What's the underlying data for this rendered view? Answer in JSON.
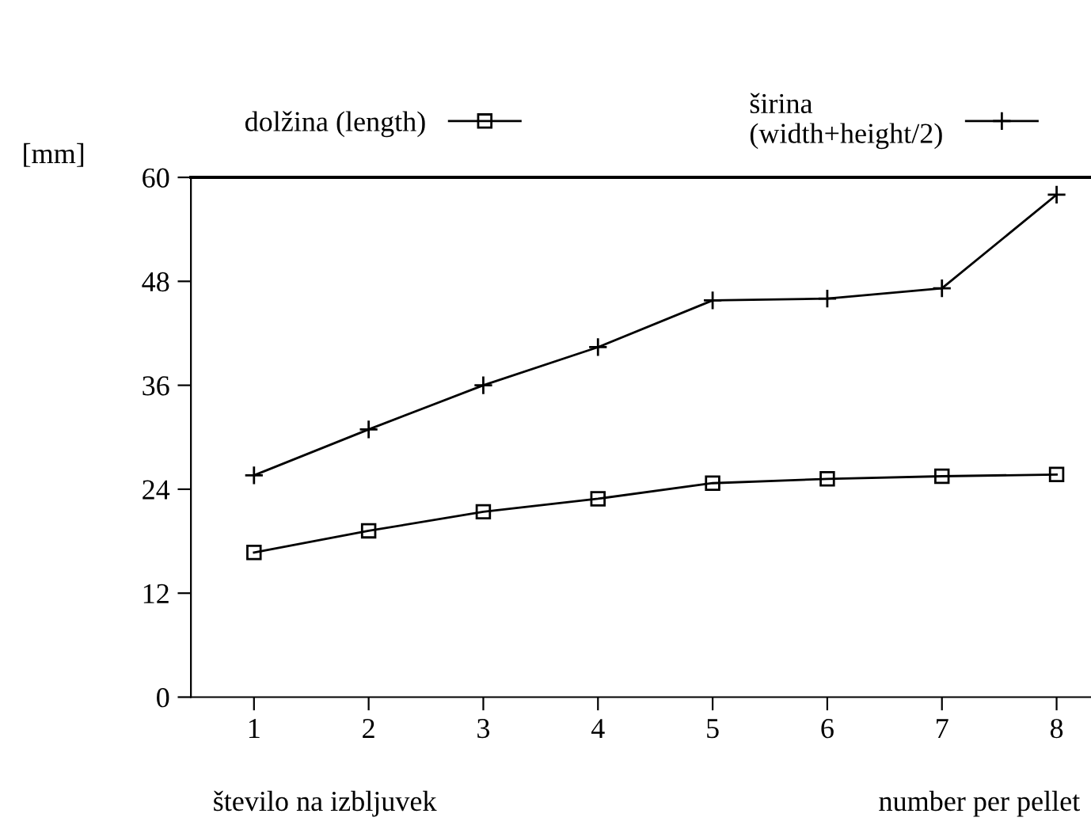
{
  "chart_data": {
    "type": "line",
    "ylabel": "[mm]",
    "xlabel": "število na izbljuvek",
    "annotations": [
      "number per pellet"
    ],
    "x": [
      1,
      2,
      3,
      4,
      5,
      6,
      7,
      8
    ],
    "series": [
      {
        "name": "dolžina (length)",
        "color": "#000000",
        "marker": "square",
        "values": [
          16.7,
          19.2,
          21.4,
          22.9,
          24.7,
          25.2,
          25.5,
          25.7
        ]
      },
      {
        "name": "širina\n(width+height/2)",
        "color": "#000000",
        "marker": "cross",
        "values": [
          25.6,
          30.9,
          36.0,
          40.4,
          45.8,
          46.0,
          47.2,
          58.0
        ]
      }
    ],
    "xlim": [
      0.45,
      8.3
    ],
    "xticks": [
      1,
      2,
      3,
      4,
      5,
      6,
      7,
      8
    ],
    "ylim": [
      0,
      60
    ],
    "yticks": [
      0,
      12,
      24,
      36,
      48,
      60
    ],
    "grid": false,
    "legend": "top",
    "line_style": "solid"
  }
}
